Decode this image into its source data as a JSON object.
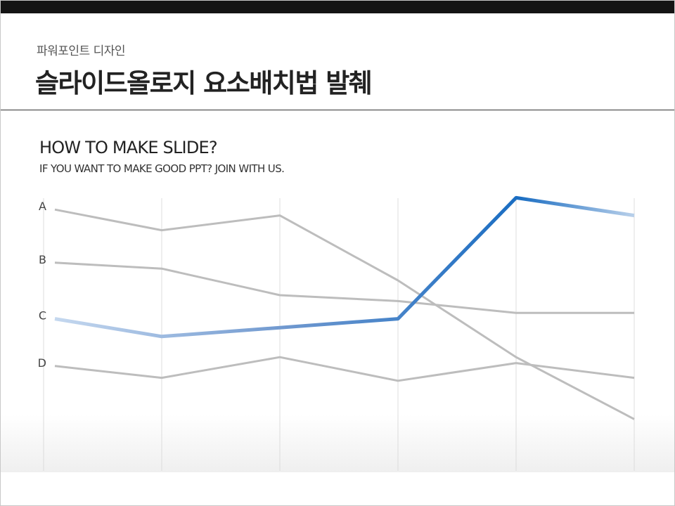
{
  "header": {
    "subtitle": "파워포인트 디자인",
    "title": "슬라이드올로지 요소배치법 발췌"
  },
  "section": {
    "heading": "HOW TO MAKE SLIDE?",
    "tagline": "IF YOU WANT TO MAKE GOOD PPT? JOIN WITH US."
  },
  "colors": {
    "muted_line": "#bdbdbd",
    "highlight_start": "#c5d8ef",
    "highlight_mid": "#1a6dc2",
    "highlight_end": "#b9d0ea",
    "gridline": "#dcdcdc"
  },
  "chart_data": {
    "type": "line",
    "categories": [
      "",
      "",
      "",
      "",
      "",
      ""
    ],
    "ylim": [
      0,
      100
    ],
    "grid": "vertical",
    "highlight_series": "C",
    "series": [
      {
        "name": "A",
        "values": [
          89,
          82,
          87,
          65,
          39,
          18
        ]
      },
      {
        "name": "B",
        "values": [
          71,
          69,
          60,
          58,
          54,
          54
        ]
      },
      {
        "name": "C",
        "values": [
          52,
          46,
          49,
          52,
          93,
          87
        ]
      },
      {
        "name": "D",
        "values": [
          36,
          32,
          39,
          31,
          37,
          32
        ]
      }
    ]
  }
}
